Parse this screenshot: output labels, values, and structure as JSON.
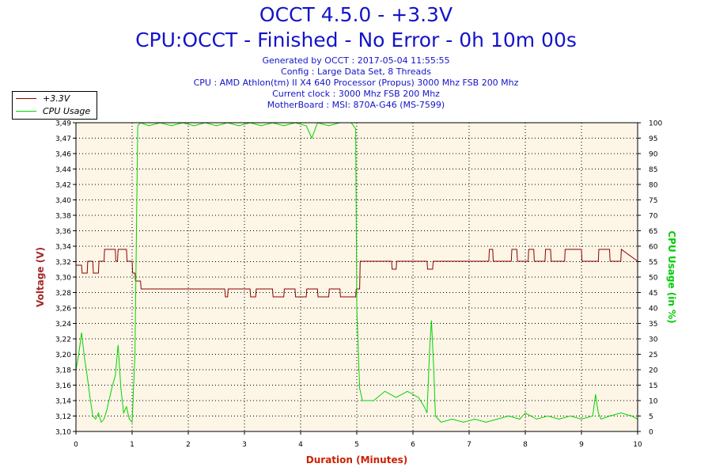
{
  "header": {
    "title": "OCCT 4.5.0 - +3.3V",
    "subtitle": "CPU:OCCT - Finished - No Error - 0h 10m 00s",
    "info_lines": [
      "Generated by OCCT : 2017-05-04 11:55:55",
      "Config : Large Data Set, 8 Threads",
      "CPU : AMD Athlon(tm) II X4 640 Processor (Propus) 3000 Mhz FSB 200 Mhz",
      "Current clock : 3000 Mhz FSB 200 Mhz",
      "MotherBoard : MSI: 870A-G46 (MS-7599)"
    ]
  },
  "legend": {
    "items": [
      {
        "label": "+3.3V",
        "color": "#8b0000"
      },
      {
        "label": "CPU Usage",
        "color": "#00d400"
      }
    ]
  },
  "colors": {
    "voltage": "#8b0000",
    "cpu": "#00d400",
    "plot_bg": "#fdf5e6",
    "title": "#1414c8",
    "axis_title_left": "#a52a2a",
    "axis_title_right": "#00cc00",
    "axis_title_bottom": "#cc2200"
  },
  "chart_data": {
    "type": "line",
    "xlabel": "Duration (Minutes)",
    "ylabel": "Voltage (V)",
    "y2label": "CPU Usage (in %)",
    "xlim": [
      0,
      10
    ],
    "ylim": [
      3.1,
      3.49
    ],
    "y2lim": [
      0,
      100
    ],
    "x_ticks": [
      "0",
      "1",
      "2",
      "3",
      "4",
      "5",
      "6",
      "7",
      "8",
      "9",
      "10"
    ],
    "y_ticks": [
      "3,10",
      "3,12",
      "3,14",
      "3,16",
      "3,18",
      "3,20",
      "3,22",
      "3,24",
      "3,26",
      "3,28",
      "3,30",
      "3,32",
      "3,34",
      "3,36",
      "3,38",
      "3,40",
      "3,42",
      "3,44",
      "3,46",
      "3,47",
      "3,49"
    ],
    "y2_ticks": [
      "0",
      "5",
      "10",
      "15",
      "20",
      "25",
      "30",
      "35",
      "40",
      "45",
      "50",
      "55",
      "60",
      "65",
      "70",
      "75",
      "80",
      "85",
      "90",
      "95",
      "100"
    ],
    "grid": true,
    "legend_position": "top-left",
    "series": [
      {
        "name": "+3.3V",
        "axis": "left",
        "x": [
          0.0,
          0.1,
          0.11,
          0.2,
          0.21,
          0.3,
          0.31,
          0.4,
          0.41,
          0.5,
          0.51,
          0.7,
          0.71,
          0.74,
          0.75,
          0.9,
          0.91,
          1.0,
          1.01,
          1.05,
          1.06,
          1.15,
          1.16,
          2.65,
          2.66,
          2.7,
          2.71,
          3.1,
          3.11,
          3.2,
          3.21,
          3.5,
          3.51,
          3.7,
          3.71,
          3.9,
          3.91,
          4.1,
          4.11,
          4.3,
          4.31,
          4.5,
          4.51,
          4.7,
          4.71,
          4.98,
          4.99,
          5.05,
          5.06,
          5.62,
          5.63,
          5.7,
          5.71,
          6.25,
          6.26,
          6.35,
          6.36,
          7.35,
          7.36,
          7.42,
          7.43,
          7.75,
          7.76,
          7.85,
          7.86,
          8.05,
          8.06,
          8.15,
          8.16,
          8.35,
          8.36,
          8.45,
          8.46,
          8.7,
          8.71,
          9.0,
          9.01,
          9.3,
          9.31,
          9.5,
          9.51,
          9.7,
          9.71,
          10.0
        ],
        "y": [
          3.31,
          3.31,
          3.3,
          3.3,
          3.315,
          3.315,
          3.3,
          3.3,
          3.315,
          3.315,
          3.33,
          3.33,
          3.315,
          3.315,
          3.33,
          3.33,
          3.315,
          3.315,
          3.3,
          3.3,
          3.29,
          3.29,
          3.28,
          3.28,
          3.27,
          3.27,
          3.28,
          3.28,
          3.27,
          3.27,
          3.28,
          3.28,
          3.27,
          3.27,
          3.28,
          3.28,
          3.27,
          3.27,
          3.28,
          3.28,
          3.27,
          3.27,
          3.28,
          3.28,
          3.27,
          3.27,
          3.28,
          3.28,
          3.315,
          3.315,
          3.305,
          3.305,
          3.315,
          3.315,
          3.305,
          3.305,
          3.315,
          3.315,
          3.33,
          3.33,
          3.315,
          3.315,
          3.33,
          3.33,
          3.315,
          3.315,
          3.33,
          3.33,
          3.315,
          3.315,
          3.33,
          3.33,
          3.315,
          3.315,
          3.33,
          3.33,
          3.315,
          3.315,
          3.33,
          3.33,
          3.315,
          3.315,
          3.33,
          3.315
        ]
      },
      {
        "name": "CPU Usage",
        "axis": "right",
        "x": [
          0.0,
          0.05,
          0.1,
          0.15,
          0.2,
          0.25,
          0.3,
          0.35,
          0.4,
          0.45,
          0.5,
          0.55,
          0.6,
          0.65,
          0.7,
          0.75,
          0.8,
          0.85,
          0.9,
          0.95,
          1.0,
          1.05,
          1.1,
          1.15,
          1.3,
          1.5,
          1.7,
          1.9,
          2.1,
          2.3,
          2.5,
          2.7,
          2.9,
          3.1,
          3.3,
          3.5,
          3.7,
          3.9,
          4.1,
          4.2,
          4.3,
          4.5,
          4.7,
          4.9,
          4.98,
          5.0,
          5.05,
          5.1,
          5.3,
          5.5,
          5.7,
          5.9,
          6.1,
          6.2,
          6.25,
          6.3,
          6.33,
          6.37,
          6.4,
          6.5,
          6.7,
          6.9,
          7.1,
          7.3,
          7.5,
          7.7,
          7.9,
          8.0,
          8.2,
          8.4,
          8.6,
          8.8,
          9.0,
          9.2,
          9.25,
          9.3,
          9.35,
          9.5,
          9.7,
          9.9,
          10.0
        ],
        "y": [
          20,
          25,
          32,
          24,
          18,
          11,
          5,
          4,
          6,
          3,
          4,
          7,
          11,
          15,
          18,
          28,
          14,
          6,
          8,
          4,
          3,
          25,
          99,
          100,
          99,
          100,
          99,
          100,
          99,
          100,
          99,
          100,
          99,
          100,
          99,
          100,
          99,
          100,
          99,
          95,
          100,
          99,
          100,
          100,
          98,
          40,
          14,
          10,
          10,
          13,
          11,
          13,
          11,
          8,
          6,
          28,
          36,
          20,
          5,
          3,
          4,
          3,
          4,
          3,
          4,
          5,
          4,
          6,
          4,
          5,
          4,
          5,
          4,
          5,
          12,
          6,
          4,
          5,
          6,
          5,
          4
        ]
      }
    ]
  }
}
